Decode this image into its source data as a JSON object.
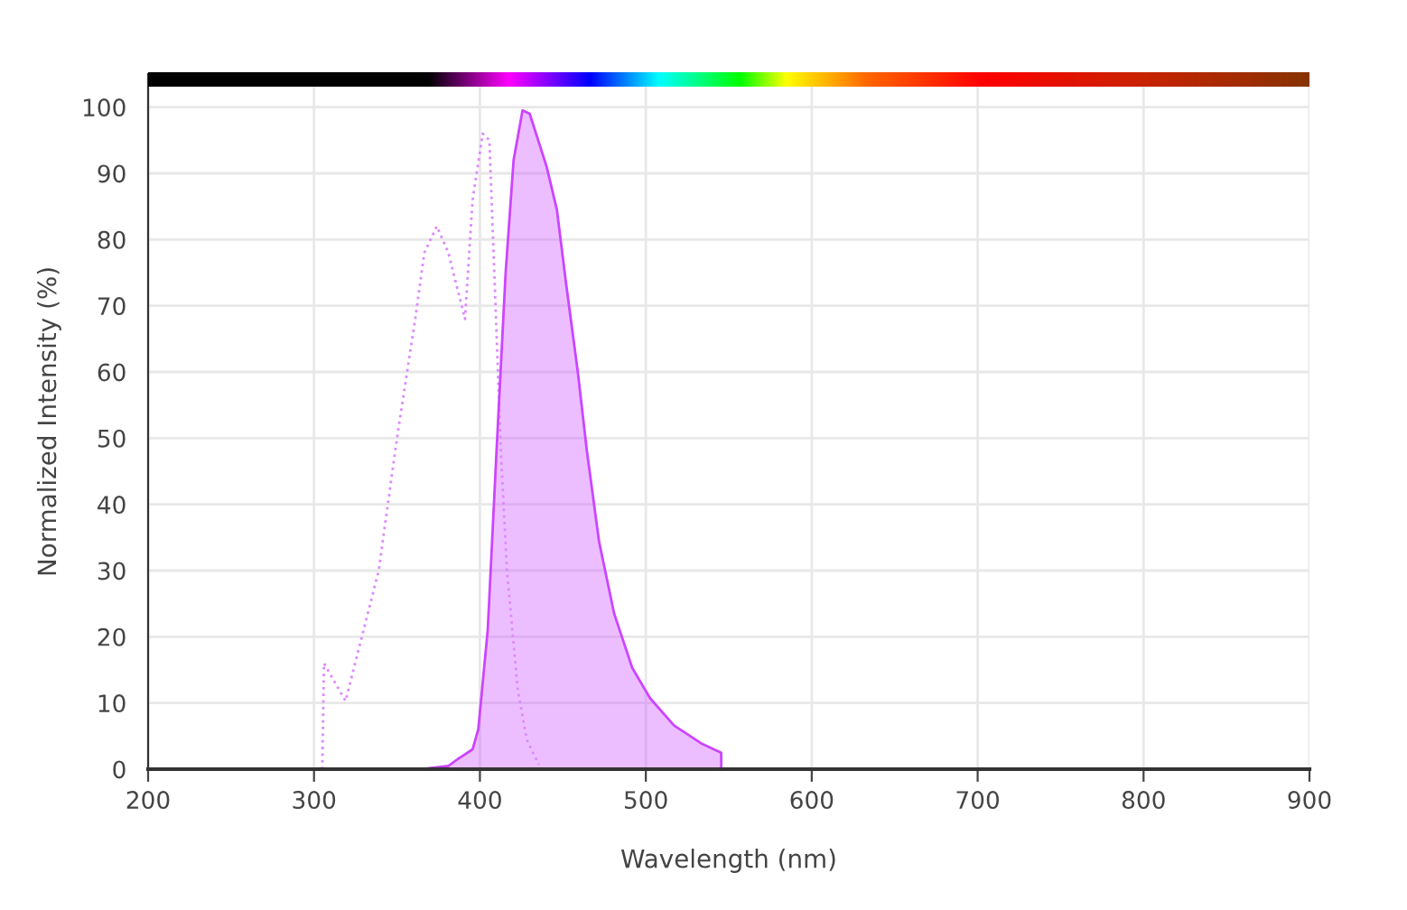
{
  "chart_data": {
    "type": "line",
    "xlabel": "Wavelength (nm)",
    "ylabel": "Normalized Intensity (%)",
    "xlim": [
      200,
      900
    ],
    "xticks": [
      200,
      300,
      400,
      500,
      600,
      700,
      800,
      900
    ],
    "ylim": [
      0,
      105
    ],
    "yticks": [
      0,
      10,
      20,
      30,
      40,
      50,
      60,
      70,
      80,
      90,
      100
    ],
    "grid": true,
    "legend": false,
    "series": [
      {
        "line_style": "dotted",
        "color": "#dd88ff",
        "x": [
          305,
          306,
          319,
          339,
          350,
          361,
          366.5,
          374,
          381,
          391,
          395.6,
          401.7,
          405.7,
          410,
          412.6,
          416.3,
          422.8,
          428.3,
          435.5
        ],
        "values": [
          0,
          16,
          10.3,
          30,
          50,
          68,
          78,
          82,
          78,
          68,
          86,
          96,
          95,
          66,
          48,
          30,
          12,
          4.4,
          0.7
        ]
      },
      {
        "type": "area",
        "line_style": "solid",
        "color": "#cc44ff",
        "x": [
          365,
          381,
          386.5,
          395.6,
          399,
          404.7,
          410,
          415.5,
          420.3,
          425.7,
          430,
          440.2,
          446.4,
          451.8,
          459,
          464.5,
          471.8,
          480.9,
          491.8,
          502.6,
          517,
          533.4,
          545.4,
          545.5
        ],
        "values": [
          0,
          0.5,
          1.5,
          3,
          6,
          21,
          48,
          75,
          92,
          99.5,
          99,
          91,
          84.5,
          73.6,
          60,
          48,
          34.4,
          23.5,
          15.3,
          10.7,
          6.6,
          3.9,
          2.5,
          0
        ]
      }
    ]
  }
}
